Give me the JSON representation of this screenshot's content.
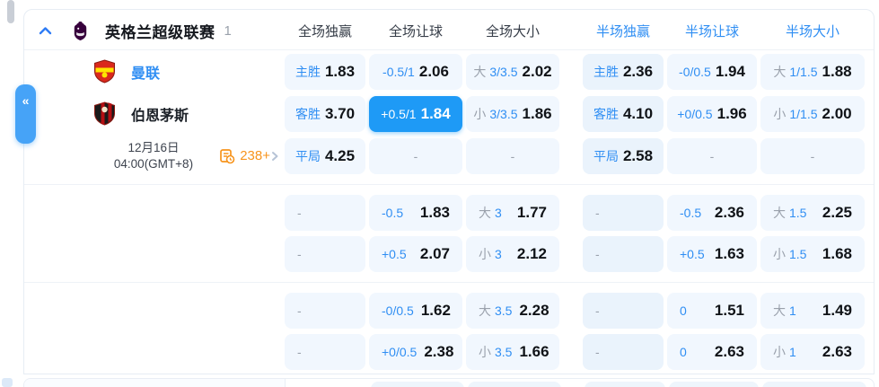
{
  "header": {
    "league": "英格兰超级联赛",
    "count": "1",
    "columns": [
      {
        "label": "全场独赢",
        "half": false
      },
      {
        "label": "全场让球",
        "half": false
      },
      {
        "label": "全场大小",
        "half": false
      },
      {
        "label": "半场独赢",
        "half": true
      },
      {
        "label": "半场让球",
        "half": true
      },
      {
        "label": "半场大小",
        "half": true
      }
    ]
  },
  "match": {
    "home": "曼联",
    "away": "伯恩茅斯",
    "date": "12月16日",
    "time": "04:00(GMT+8)",
    "markets_count": "238+"
  },
  "collapse_tab_glyph": "«",
  "colors": {
    "accent_selected": "#1e9af6",
    "label_blue": "#2f8ef3",
    "orange": "#f7941d",
    "cell_bg": "#f1f7fe",
    "half_win_cell_bg": "#eaf3fc"
  },
  "odds_groups": [
    {
      "rows": [
        [
          {
            "t": "odds",
            "label": "主胜",
            "value": "1.83"
          },
          {
            "t": "odds",
            "label": "-0.5/1",
            "value": "2.06"
          },
          {
            "t": "ou",
            "prefix": "大",
            "line": "3/3.5",
            "value": "2.02"
          },
          {
            "t": "odds",
            "label": "主胜",
            "value": "2.36"
          },
          {
            "t": "odds",
            "label": "-0/0.5",
            "value": "1.94"
          },
          {
            "t": "ou",
            "prefix": "大",
            "line": "1/1.5",
            "value": "1.88"
          }
        ],
        [
          {
            "t": "odds",
            "label": "客胜",
            "value": "3.70"
          },
          {
            "t": "odds",
            "label": "+0.5/1",
            "value": "1.84",
            "selected": true
          },
          {
            "t": "ou",
            "prefix": "小",
            "line": "3/3.5",
            "value": "1.86"
          },
          {
            "t": "odds",
            "label": "客胜",
            "value": "4.10"
          },
          {
            "t": "odds",
            "label": "+0/0.5",
            "value": "1.96"
          },
          {
            "t": "ou",
            "prefix": "小",
            "line": "1/1.5",
            "value": "2.00"
          }
        ],
        [
          {
            "t": "odds",
            "label": "平局",
            "value": "4.25"
          },
          {
            "t": "dash"
          },
          {
            "t": "dash"
          },
          {
            "t": "odds",
            "label": "平局",
            "value": "2.58"
          },
          {
            "t": "dash"
          },
          {
            "t": "dash"
          }
        ]
      ]
    },
    {
      "rows": [
        [
          {
            "t": "dash"
          },
          {
            "t": "odds",
            "label": "-0.5",
            "value": "1.83"
          },
          {
            "t": "ou",
            "prefix": "大",
            "line": "3",
            "value": "1.77"
          },
          {
            "t": "dash"
          },
          {
            "t": "odds",
            "label": "-0.5",
            "value": "2.36"
          },
          {
            "t": "ou",
            "prefix": "大",
            "line": "1.5",
            "value": "2.25"
          }
        ],
        [
          {
            "t": "dash"
          },
          {
            "t": "odds",
            "label": "+0.5",
            "value": "2.07"
          },
          {
            "t": "ou",
            "prefix": "小",
            "line": "3",
            "value": "2.12"
          },
          {
            "t": "dash"
          },
          {
            "t": "odds",
            "label": "+0.5",
            "value": "1.63"
          },
          {
            "t": "ou",
            "prefix": "小",
            "line": "1.5",
            "value": "1.68"
          }
        ]
      ]
    },
    {
      "rows": [
        [
          {
            "t": "dash"
          },
          {
            "t": "odds",
            "label": "-0/0.5",
            "value": "1.62"
          },
          {
            "t": "ou",
            "prefix": "大",
            "line": "3.5",
            "value": "2.28"
          },
          {
            "t": "dash"
          },
          {
            "t": "odds",
            "label": "0",
            "value": "1.51"
          },
          {
            "t": "ou",
            "prefix": "大",
            "line": "1",
            "value": "1.49"
          }
        ],
        [
          {
            "t": "dash"
          },
          {
            "t": "odds",
            "label": "+0/0.5",
            "value": "2.38"
          },
          {
            "t": "ou",
            "prefix": "小",
            "line": "3.5",
            "value": "1.66"
          },
          {
            "t": "dash"
          },
          {
            "t": "odds",
            "label": "0",
            "value": "2.63"
          },
          {
            "t": "ou",
            "prefix": "小",
            "line": "1",
            "value": "2.63"
          }
        ]
      ]
    }
  ]
}
